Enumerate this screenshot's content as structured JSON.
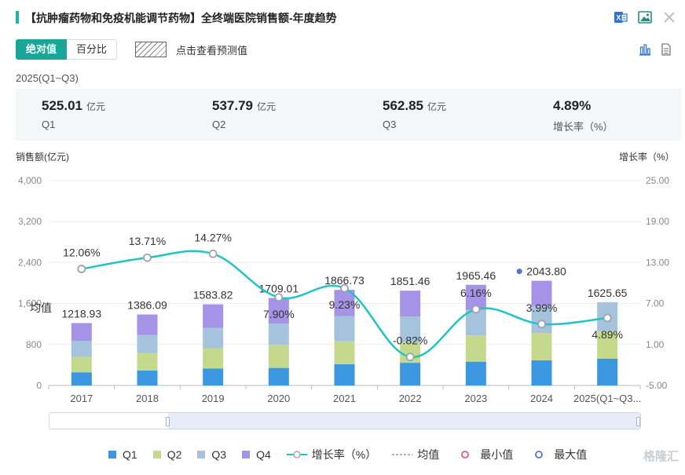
{
  "header": {
    "title": "【抗肿瘤药物和免疫机能调节药物】全终端医院销售额-年度趋势",
    "icons": [
      "excel-export-icon",
      "image-export-icon",
      "close-icon"
    ]
  },
  "toggle": {
    "absolute": "绝对值",
    "percent": "百分比"
  },
  "forecast": {
    "label": "点击查看预测值"
  },
  "period": "2025(Q1~Q3)",
  "summary": [
    {
      "value": "525.01",
      "unit": "亿元",
      "label": "Q1"
    },
    {
      "value": "537.79",
      "unit": "亿元",
      "label": "Q2"
    },
    {
      "value": "562.85",
      "unit": "亿元",
      "label": "Q3"
    },
    {
      "value": "4.89%",
      "unit": "",
      "label": "增长率（%）"
    }
  ],
  "axes": {
    "left_title": "销售额(亿元)",
    "right_title": "增长率（%）"
  },
  "colors": {
    "q1": "#3b97e0",
    "q2": "#c5d98c",
    "q3": "#a6c3dd",
    "q4": "#a493e6",
    "line": "#20c4c4",
    "accent": "#17a697"
  },
  "chart_data": {
    "type": "bar",
    "categories": [
      "2017",
      "2018",
      "2019",
      "2020",
      "2021",
      "2022",
      "2023",
      "2024",
      "2025(Q1~Q3..."
    ],
    "series": [
      {
        "name": "Q1",
        "values": [
          258,
          294,
          333,
          343,
          416,
          443,
          465,
          493,
          525.01
        ]
      },
      {
        "name": "Q2",
        "values": [
          301,
          338,
          389,
          451,
          447,
          398,
          515,
          531,
          537.79
        ]
      },
      {
        "name": "Q3",
        "values": [
          315,
          353,
          405,
          413,
          493,
          508,
          499,
          526,
          562.85
        ]
      },
      {
        "name": "Q4",
        "values": [
          344.93,
          401.09,
          456.82,
          502.01,
          510.73,
          502.46,
          486.46,
          493.8,
          0
        ]
      }
    ],
    "totals": [
      "1218.93",
      "1386.09",
      "1583.82",
      "1709.01",
      "1866.73",
      "1851.46",
      "1965.46",
      "2043.80",
      "1625.65"
    ],
    "growth": {
      "name": "增长率（%）",
      "values": [
        12.06,
        13.71,
        14.27,
        7.9,
        9.23,
        -0.82,
        6.16,
        3.99,
        4.89
      ],
      "labels": [
        "12.06%",
        "13.71%",
        "14.27%",
        "7.90%",
        "9.23%",
        "-0.82%",
        "6.16%",
        "3.99%",
        "4.89%"
      ]
    },
    "ylim": [
      0,
      4000
    ],
    "yticks": [
      "0",
      "800",
      "1,600",
      "2,400",
      "3,200",
      "4,000"
    ],
    "y2lim": [
      -5,
      25
    ],
    "y2ticks": [
      "-5.00",
      "1.00",
      "7.00",
      "13.00",
      "19.00",
      "25.00"
    ],
    "avg_label": "均值",
    "max_index": 7
  },
  "legend": {
    "items": [
      "Q1",
      "Q2",
      "Q3",
      "Q4",
      "增长率（%）",
      "均值",
      "最小值",
      "最大值"
    ]
  },
  "watermark": "格隆汇"
}
